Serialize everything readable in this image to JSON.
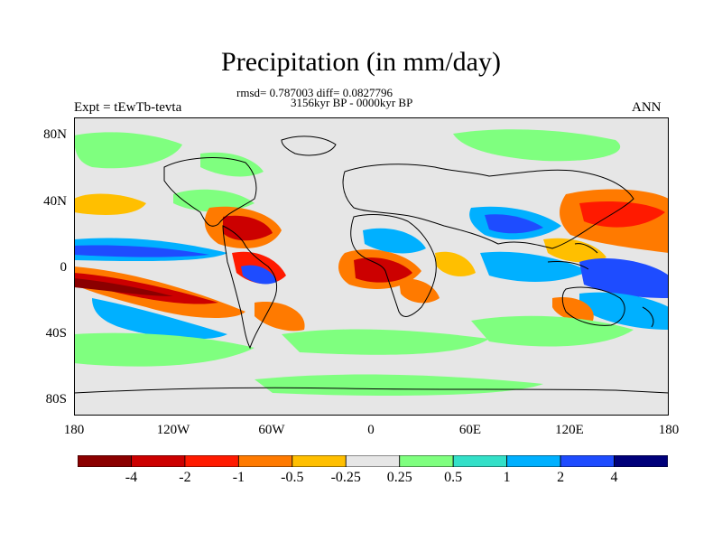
{
  "title": "Precipitation (in mm/day)",
  "stats_line": "rmsd= 0.787003 diff= 0.0827796",
  "period_line": "3156kyr BP - 0000kyr BP",
  "expt_label": "Expt = tEwTb-tevta",
  "season_label": "ANN",
  "y_ticks": [
    "80N",
    "40N",
    "0",
    "40S",
    "80S"
  ],
  "x_ticks": [
    "180",
    "120W",
    "60W",
    "0",
    "60E",
    "120E",
    "180"
  ],
  "colorbar": {
    "colors": [
      "#8b0000",
      "#cc0000",
      "#ff1a00",
      "#ff7a00",
      "#ffbf00",
      "#e6e6e6",
      "#7fff7f",
      "#33e0c8",
      "#00b0ff",
      "#1e4cff",
      "#00007a"
    ],
    "labels": [
      "-4",
      "-2",
      "-1",
      "-0.5",
      "-0.25",
      "0.25",
      "0.5",
      "1",
      "2",
      "4"
    ]
  }
}
